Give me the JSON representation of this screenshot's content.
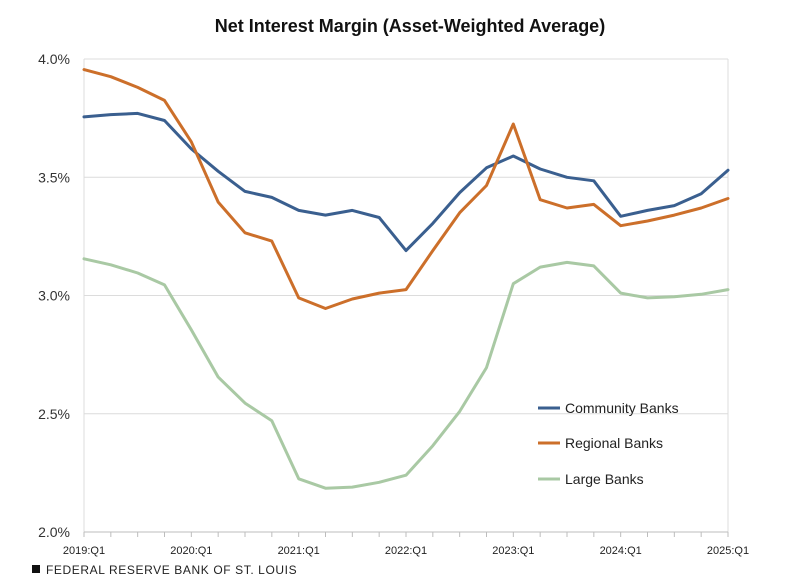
{
  "chart_data": {
    "type": "line",
    "title": "Net Interest Margin (Asset-Weighted Average)",
    "xlabel": "",
    "ylabel": "",
    "ylim": [
      2.0,
      4.0
    ],
    "yticks": [
      {
        "value": 2.0,
        "label": "2.0%"
      },
      {
        "value": 2.5,
        "label": "2.5%"
      },
      {
        "value": 3.0,
        "label": "3.0%"
      },
      {
        "value": 3.5,
        "label": "3.5%"
      },
      {
        "value": 4.0,
        "label": "4.0%"
      }
    ],
    "categories": [
      "2019:Q1",
      "2019:Q2",
      "2019:Q3",
      "2019:Q4",
      "2020:Q1",
      "2020:Q2",
      "2020:Q3",
      "2020:Q4",
      "2021:Q1",
      "2021:Q2",
      "2021:Q3",
      "2021:Q4",
      "2022:Q1",
      "2022:Q2",
      "2022:Q3",
      "2022:Q4",
      "2023:Q1",
      "2023:Q2",
      "2023:Q3",
      "2023:Q4",
      "2024:Q1",
      "2024:Q2",
      "2024:Q3",
      "2024:Q4",
      "2025:Q1"
    ],
    "xtick_labels": [
      {
        "index": 0,
        "label": "2019:Q1"
      },
      {
        "index": 4,
        "label": "2020:Q1"
      },
      {
        "index": 8,
        "label": "2021:Q1"
      },
      {
        "index": 12,
        "label": "2022:Q1"
      },
      {
        "index": 16,
        "label": "2023:Q1"
      },
      {
        "index": 20,
        "label": "2024:Q1"
      },
      {
        "index": 24,
        "label": "2025:Q1"
      }
    ],
    "grid": "horizontal",
    "legend_position": "lower-right",
    "series": [
      {
        "name": "Community Banks",
        "color": "#3a5f8f",
        "values": [
          3.755,
          3.765,
          3.77,
          3.74,
          3.62,
          3.525,
          3.44,
          3.415,
          3.36,
          3.34,
          3.36,
          3.33,
          3.19,
          3.305,
          3.435,
          3.54,
          3.59,
          3.535,
          3.5,
          3.485,
          3.335,
          3.36,
          3.38,
          3.43,
          3.53
        ]
      },
      {
        "name": "Regional Banks",
        "color": "#cc6f2a",
        "values": [
          3.955,
          3.925,
          3.88,
          3.825,
          3.65,
          3.395,
          3.265,
          3.23,
          2.99,
          2.945,
          2.985,
          3.01,
          3.025,
          3.19,
          3.35,
          3.465,
          3.725,
          3.405,
          3.37,
          3.385,
          3.295,
          3.315,
          3.34,
          3.37,
          3.41
        ]
      },
      {
        "name": "Large Banks",
        "color": "#a9c9a4",
        "values": [
          3.155,
          3.13,
          3.095,
          3.045,
          2.855,
          2.655,
          2.545,
          2.47,
          2.225,
          2.185,
          2.19,
          2.21,
          2.24,
          2.365,
          2.51,
          2.695,
          3.05,
          3.12,
          3.14,
          3.125,
          3.01,
          2.99,
          2.995,
          3.005,
          3.025
        ]
      }
    ]
  },
  "source": "FEDERAL RESERVE BANK OF ST. LOUIS"
}
